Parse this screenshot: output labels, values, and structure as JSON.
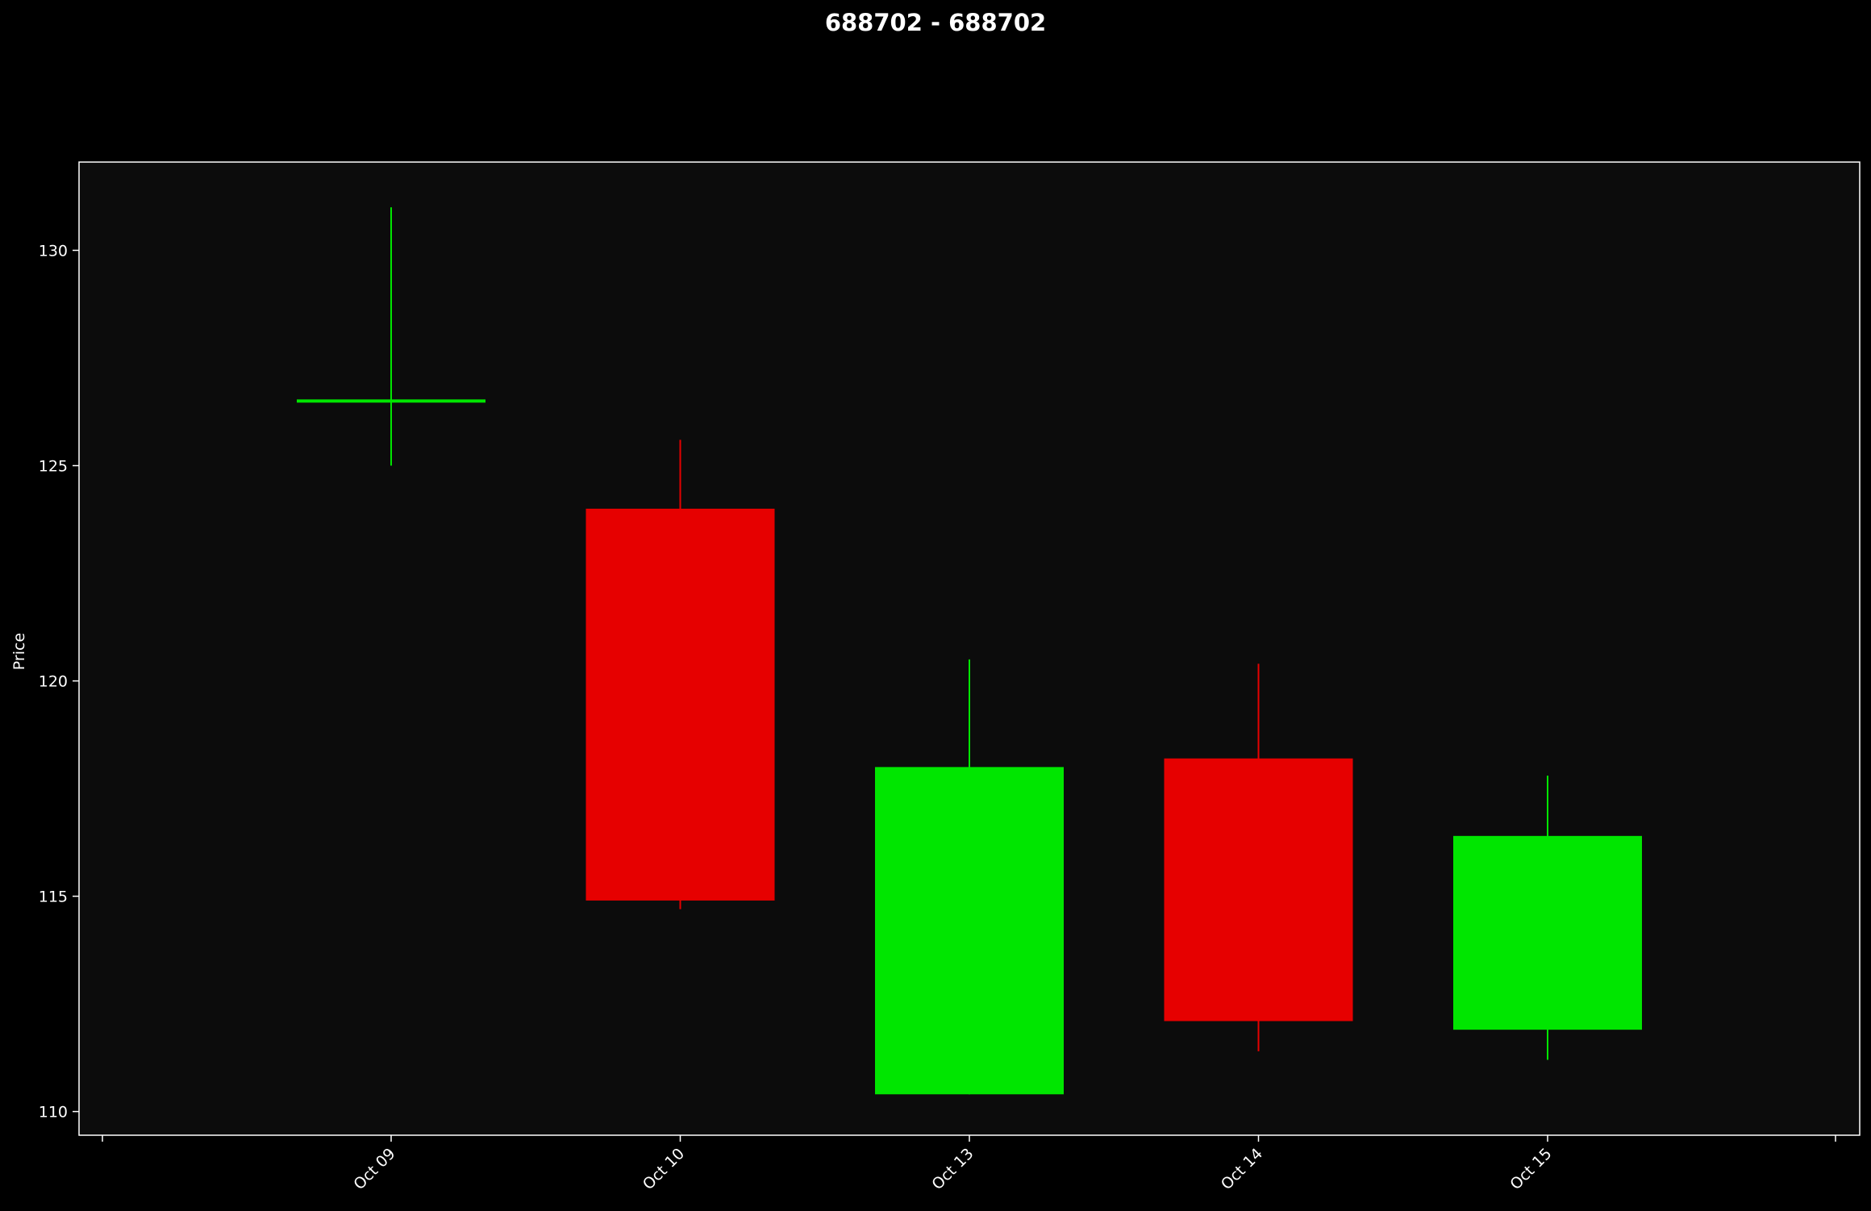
{
  "chart_data": {
    "type": "candlestick",
    "title": "688702 - 688702",
    "xlabel": "",
    "ylabel": "Price",
    "categories": [
      "Oct 09",
      "Oct 10",
      "Oct 13",
      "Oct 14",
      "Oct 15"
    ],
    "candles": [
      {
        "date": "Oct 09",
        "open": 126.5,
        "high": 131.0,
        "low": 125.0,
        "close": 126.5
      },
      {
        "date": "Oct 10",
        "open": 124.0,
        "high": 125.6,
        "low": 114.7,
        "close": 114.9
      },
      {
        "date": "Oct 13",
        "open": 110.4,
        "high": 120.5,
        "low": 110.4,
        "close": 118.0
      },
      {
        "date": "Oct 14",
        "open": 118.2,
        "high": 120.4,
        "low": 111.4,
        "close": 112.1
      },
      {
        "date": "Oct 15",
        "open": 111.9,
        "high": 117.8,
        "low": 111.2,
        "close": 116.4
      }
    ],
    "ylim": [
      109.45,
      132.05
    ],
    "yticks": [
      110,
      115,
      120,
      125,
      130
    ],
    "grid": false,
    "colors": {
      "up": "#00e600",
      "down": "#e60000",
      "figure_background": "#000000",
      "plot_background": "#0c0c0c",
      "axes": "#ffffff",
      "text": "#ffffff"
    }
  }
}
